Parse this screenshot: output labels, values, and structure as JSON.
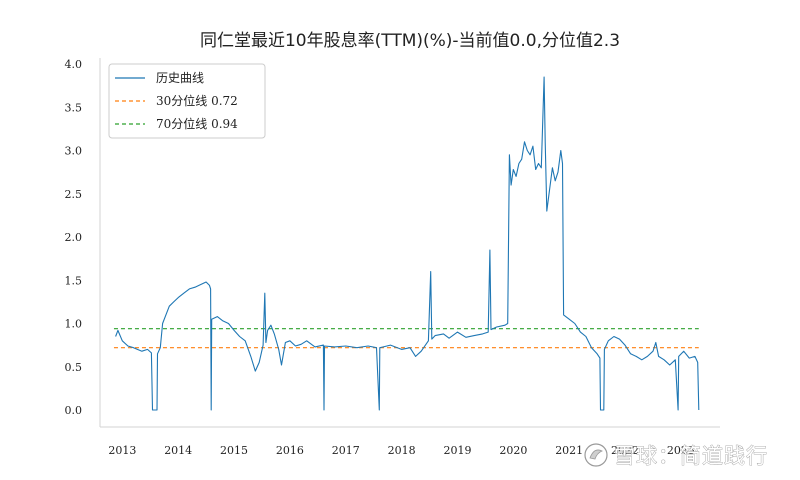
{
  "chart_data": {
    "type": "line",
    "title": "同仁堂最近10年股息率(TTM)(%)-当前值0.0,分位值2.3",
    "xlabel": "",
    "ylabel": "",
    "ylim": [
      0,
      4.0
    ],
    "xlim": [
      2012.6,
      2023.7
    ],
    "yticks": [
      "0.0",
      "0.5",
      "1.0",
      "1.5",
      "2.0",
      "2.5",
      "3.0",
      "3.5",
      "4.0"
    ],
    "xticks": [
      "2013",
      "2014",
      "2015",
      "2016",
      "2017",
      "2018",
      "2019",
      "2020",
      "2021",
      "2022",
      "2023"
    ],
    "grid": false,
    "legend_position": "top-left",
    "series": [
      {
        "name": "历史曲线",
        "color": "#1f77b4",
        "points": [
          [
            2012.88,
            0.85
          ],
          [
            2012.92,
            0.92
          ],
          [
            2013.0,
            0.8
          ],
          [
            2013.1,
            0.74
          ],
          [
            2013.2,
            0.72
          ],
          [
            2013.35,
            0.68
          ],
          [
            2013.45,
            0.7
          ],
          [
            2013.52,
            0.66
          ],
          [
            2013.54,
            0.0
          ],
          [
            2013.62,
            0.0
          ],
          [
            2013.63,
            0.65
          ],
          [
            2013.68,
            0.72
          ],
          [
            2013.72,
            1.0
          ],
          [
            2013.78,
            1.1
          ],
          [
            2013.84,
            1.2
          ],
          [
            2013.92,
            1.25
          ],
          [
            2014.0,
            1.3
          ],
          [
            2014.1,
            1.35
          ],
          [
            2014.2,
            1.4
          ],
          [
            2014.3,
            1.42
          ],
          [
            2014.4,
            1.45
          ],
          [
            2014.5,
            1.48
          ],
          [
            2014.56,
            1.44
          ],
          [
            2014.58,
            1.4
          ],
          [
            2014.59,
            0.0
          ],
          [
            2014.6,
            1.05
          ],
          [
            2014.7,
            1.08
          ],
          [
            2014.8,
            1.03
          ],
          [
            2014.9,
            1.0
          ],
          [
            2015.0,
            0.92
          ],
          [
            2015.1,
            0.85
          ],
          [
            2015.2,
            0.8
          ],
          [
            2015.3,
            0.62
          ],
          [
            2015.38,
            0.45
          ],
          [
            2015.45,
            0.55
          ],
          [
            2015.52,
            0.75
          ],
          [
            2015.55,
            1.35
          ],
          [
            2015.57,
            0.78
          ],
          [
            2015.6,
            0.92
          ],
          [
            2015.66,
            0.98
          ],
          [
            2015.72,
            0.88
          ],
          [
            2015.8,
            0.7
          ],
          [
            2015.85,
            0.52
          ],
          [
            2015.92,
            0.78
          ],
          [
            2016.0,
            0.8
          ],
          [
            2016.1,
            0.74
          ],
          [
            2016.2,
            0.76
          ],
          [
            2016.3,
            0.8
          ],
          [
            2016.45,
            0.73
          ],
          [
            2016.6,
            0.75
          ],
          [
            2016.61,
            0.0
          ],
          [
            2016.62,
            0.74
          ],
          [
            2016.8,
            0.73
          ],
          [
            2017.0,
            0.74
          ],
          [
            2017.2,
            0.72
          ],
          [
            2017.4,
            0.74
          ],
          [
            2017.55,
            0.72
          ],
          [
            2017.6,
            0.0
          ],
          [
            2017.61,
            0.72
          ],
          [
            2017.8,
            0.75
          ],
          [
            2018.0,
            0.7
          ],
          [
            2018.15,
            0.72
          ],
          [
            2018.25,
            0.62
          ],
          [
            2018.35,
            0.68
          ],
          [
            2018.48,
            0.8
          ],
          [
            2018.52,
            1.6
          ],
          [
            2018.54,
            0.82
          ],
          [
            2018.6,
            0.86
          ],
          [
            2018.75,
            0.88
          ],
          [
            2018.85,
            0.83
          ],
          [
            2019.0,
            0.9
          ],
          [
            2019.15,
            0.84
          ],
          [
            2019.3,
            0.86
          ],
          [
            2019.45,
            0.88
          ],
          [
            2019.55,
            0.9
          ],
          [
            2019.58,
            1.85
          ],
          [
            2019.6,
            0.93
          ],
          [
            2019.7,
            0.96
          ],
          [
            2019.85,
            0.98
          ],
          [
            2019.9,
            1.0
          ],
          [
            2019.93,
            2.95
          ],
          [
            2019.96,
            2.6
          ],
          [
            2020.0,
            2.78
          ],
          [
            2020.05,
            2.7
          ],
          [
            2020.1,
            2.85
          ],
          [
            2020.15,
            2.9
          ],
          [
            2020.2,
            3.1
          ],
          [
            2020.25,
            3.0
          ],
          [
            2020.3,
            2.95
          ],
          [
            2020.35,
            3.05
          ],
          [
            2020.4,
            2.78
          ],
          [
            2020.45,
            2.85
          ],
          [
            2020.5,
            2.8
          ],
          [
            2020.55,
            3.85
          ],
          [
            2020.57,
            3.1
          ],
          [
            2020.6,
            2.3
          ],
          [
            2020.65,
            2.55
          ],
          [
            2020.7,
            2.8
          ],
          [
            2020.75,
            2.65
          ],
          [
            2020.8,
            2.75
          ],
          [
            2020.85,
            3.0
          ],
          [
            2020.88,
            2.85
          ],
          [
            2020.9,
            1.1
          ],
          [
            2021.0,
            1.05
          ],
          [
            2021.1,
            1.0
          ],
          [
            2021.2,
            0.9
          ],
          [
            2021.3,
            0.85
          ],
          [
            2021.4,
            0.72
          ],
          [
            2021.5,
            0.65
          ],
          [
            2021.55,
            0.6
          ],
          [
            2021.56,
            0.0
          ],
          [
            2021.62,
            0.0
          ],
          [
            2021.63,
            0.7
          ],
          [
            2021.7,
            0.8
          ],
          [
            2021.8,
            0.85
          ],
          [
            2021.9,
            0.82
          ],
          [
            2022.0,
            0.75
          ],
          [
            2022.1,
            0.65
          ],
          [
            2022.2,
            0.62
          ],
          [
            2022.3,
            0.58
          ],
          [
            2022.4,
            0.62
          ],
          [
            2022.5,
            0.68
          ],
          [
            2022.55,
            0.78
          ],
          [
            2022.6,
            0.62
          ],
          [
            2022.7,
            0.58
          ],
          [
            2022.8,
            0.52
          ],
          [
            2022.9,
            0.58
          ],
          [
            2022.95,
            0.0
          ],
          [
            2022.96,
            0.62
          ],
          [
            2023.05,
            0.68
          ],
          [
            2023.15,
            0.6
          ],
          [
            2023.25,
            0.62
          ],
          [
            2023.3,
            0.55
          ],
          [
            2023.32,
            0.0
          ]
        ]
      },
      {
        "name": "30分位线 0.72",
        "color": "#ff7f0e",
        "dashed": true,
        "value": 0.72
      },
      {
        "name": "70分位线 0.94",
        "color": "#2ca02c",
        "dashed": true,
        "value": 0.94
      }
    ],
    "x_start": 2012.85,
    "x_end": 2023.32
  },
  "watermark": {
    "text": "雪球：简道践行"
  },
  "colors": {
    "axis": "#d3d3d3",
    "legend_border": "#cccccc"
  }
}
